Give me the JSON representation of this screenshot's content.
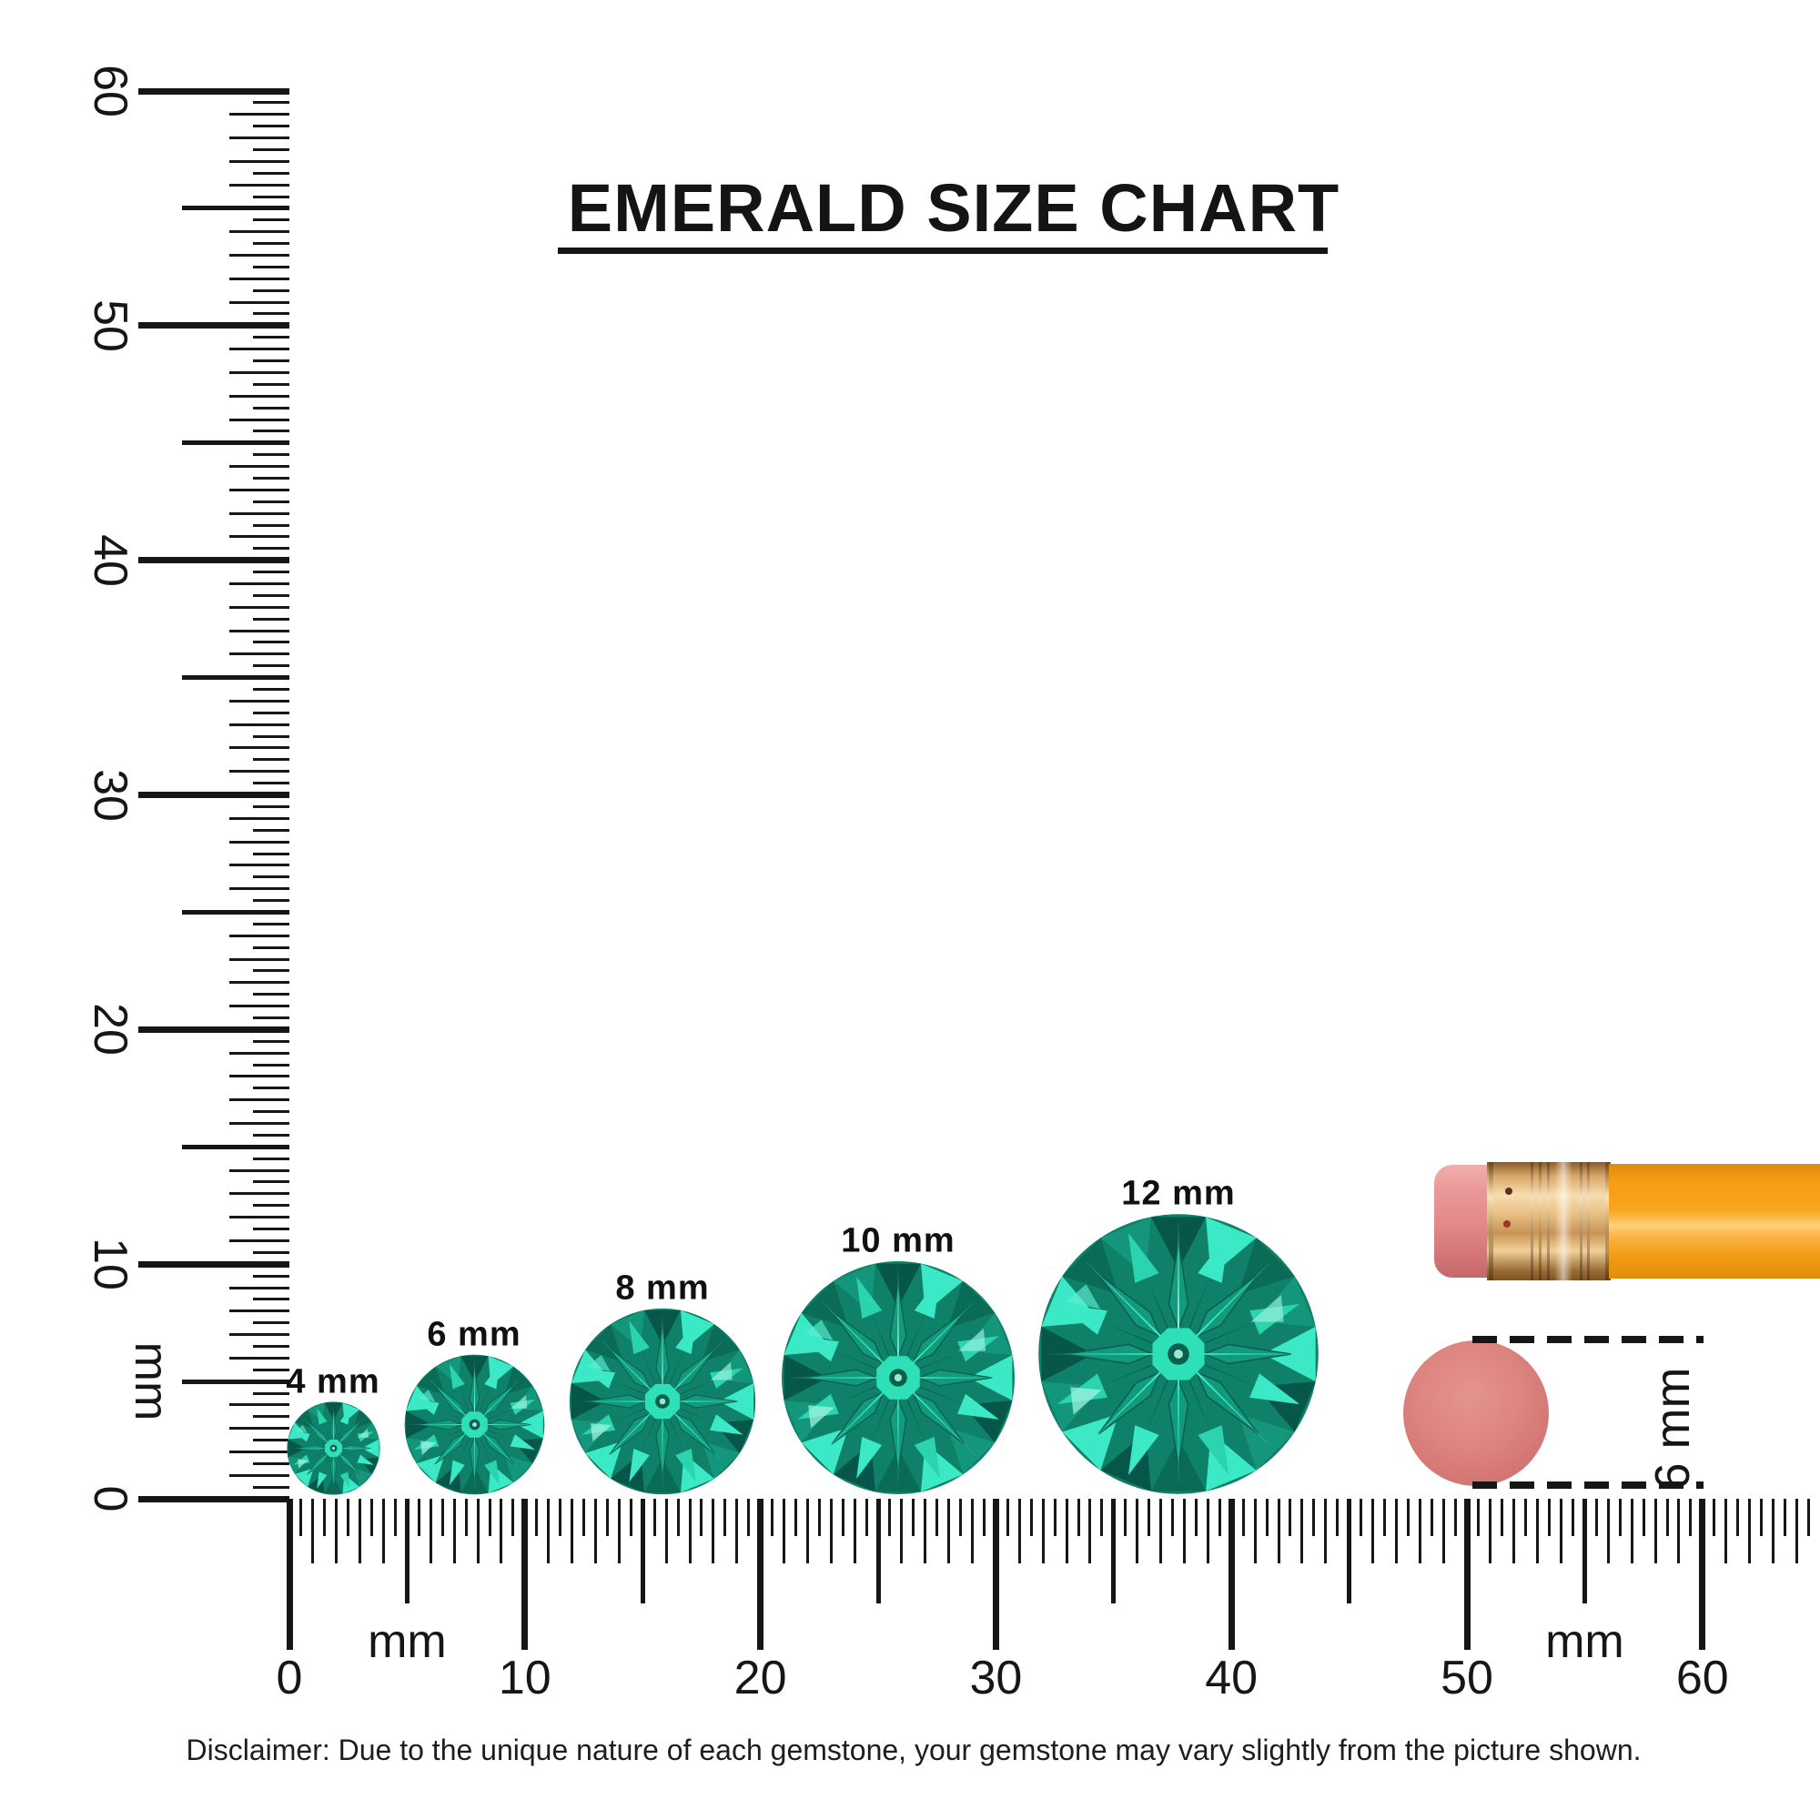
{
  "title": "EMERALD SIZE CHART",
  "gems": [
    {
      "label": "4 mm",
      "size_mm": 4
    },
    {
      "label": "6 mm",
      "size_mm": 6
    },
    {
      "label": "8 mm",
      "size_mm": 8
    },
    {
      "label": "10 mm",
      "size_mm": 10
    },
    {
      "label": "12 mm",
      "size_mm": 12
    }
  ],
  "rulers": {
    "unit_label": "mm",
    "vertical": {
      "min_mm": 0,
      "max_mm": 60,
      "tick_step_mm": 0.5,
      "number_labels": [
        "0",
        "10",
        "20",
        "30",
        "40",
        "50",
        "60"
      ],
      "unit_positions_mm": [
        5
      ]
    },
    "horizontal": {
      "min_mm": 0,
      "max_mm": 64.5,
      "tick_step_mm": 0.5,
      "number_labels": [
        "0",
        "10",
        "20",
        "30",
        "40",
        "50",
        "60"
      ],
      "unit_positions_mm": [
        5,
        55
      ]
    }
  },
  "reference_objects": {
    "pencil": {
      "name": "pencil-with-eraser",
      "body_color": "#F8A41F",
      "body_highlight": "#FFD177",
      "ferrule_color": "#E7BD80",
      "ferrule_shadow": "#8A5A28",
      "eraser_color": "#E18889"
    },
    "eraser_dot": {
      "label": "6 mm",
      "color": "#DC8480",
      "size_mm": 6
    }
  },
  "gem_palette": {
    "base": "#0E8168",
    "rim_dark": "#07564A",
    "rim_mid": "#13967B",
    "rim_deep": "#0A6B57",
    "bright": "#3BE9C7",
    "pale": "#A8F6E5",
    "star": "#129A7D",
    "core": "#0A5F4D",
    "center": "#2EE0B8",
    "accent": "#2BD4AE"
  },
  "ink_color": "#161616",
  "disclaimer": "Disclaimer: Due to the unique nature of each gemstone, your gemstone may vary slightly from the picture shown."
}
